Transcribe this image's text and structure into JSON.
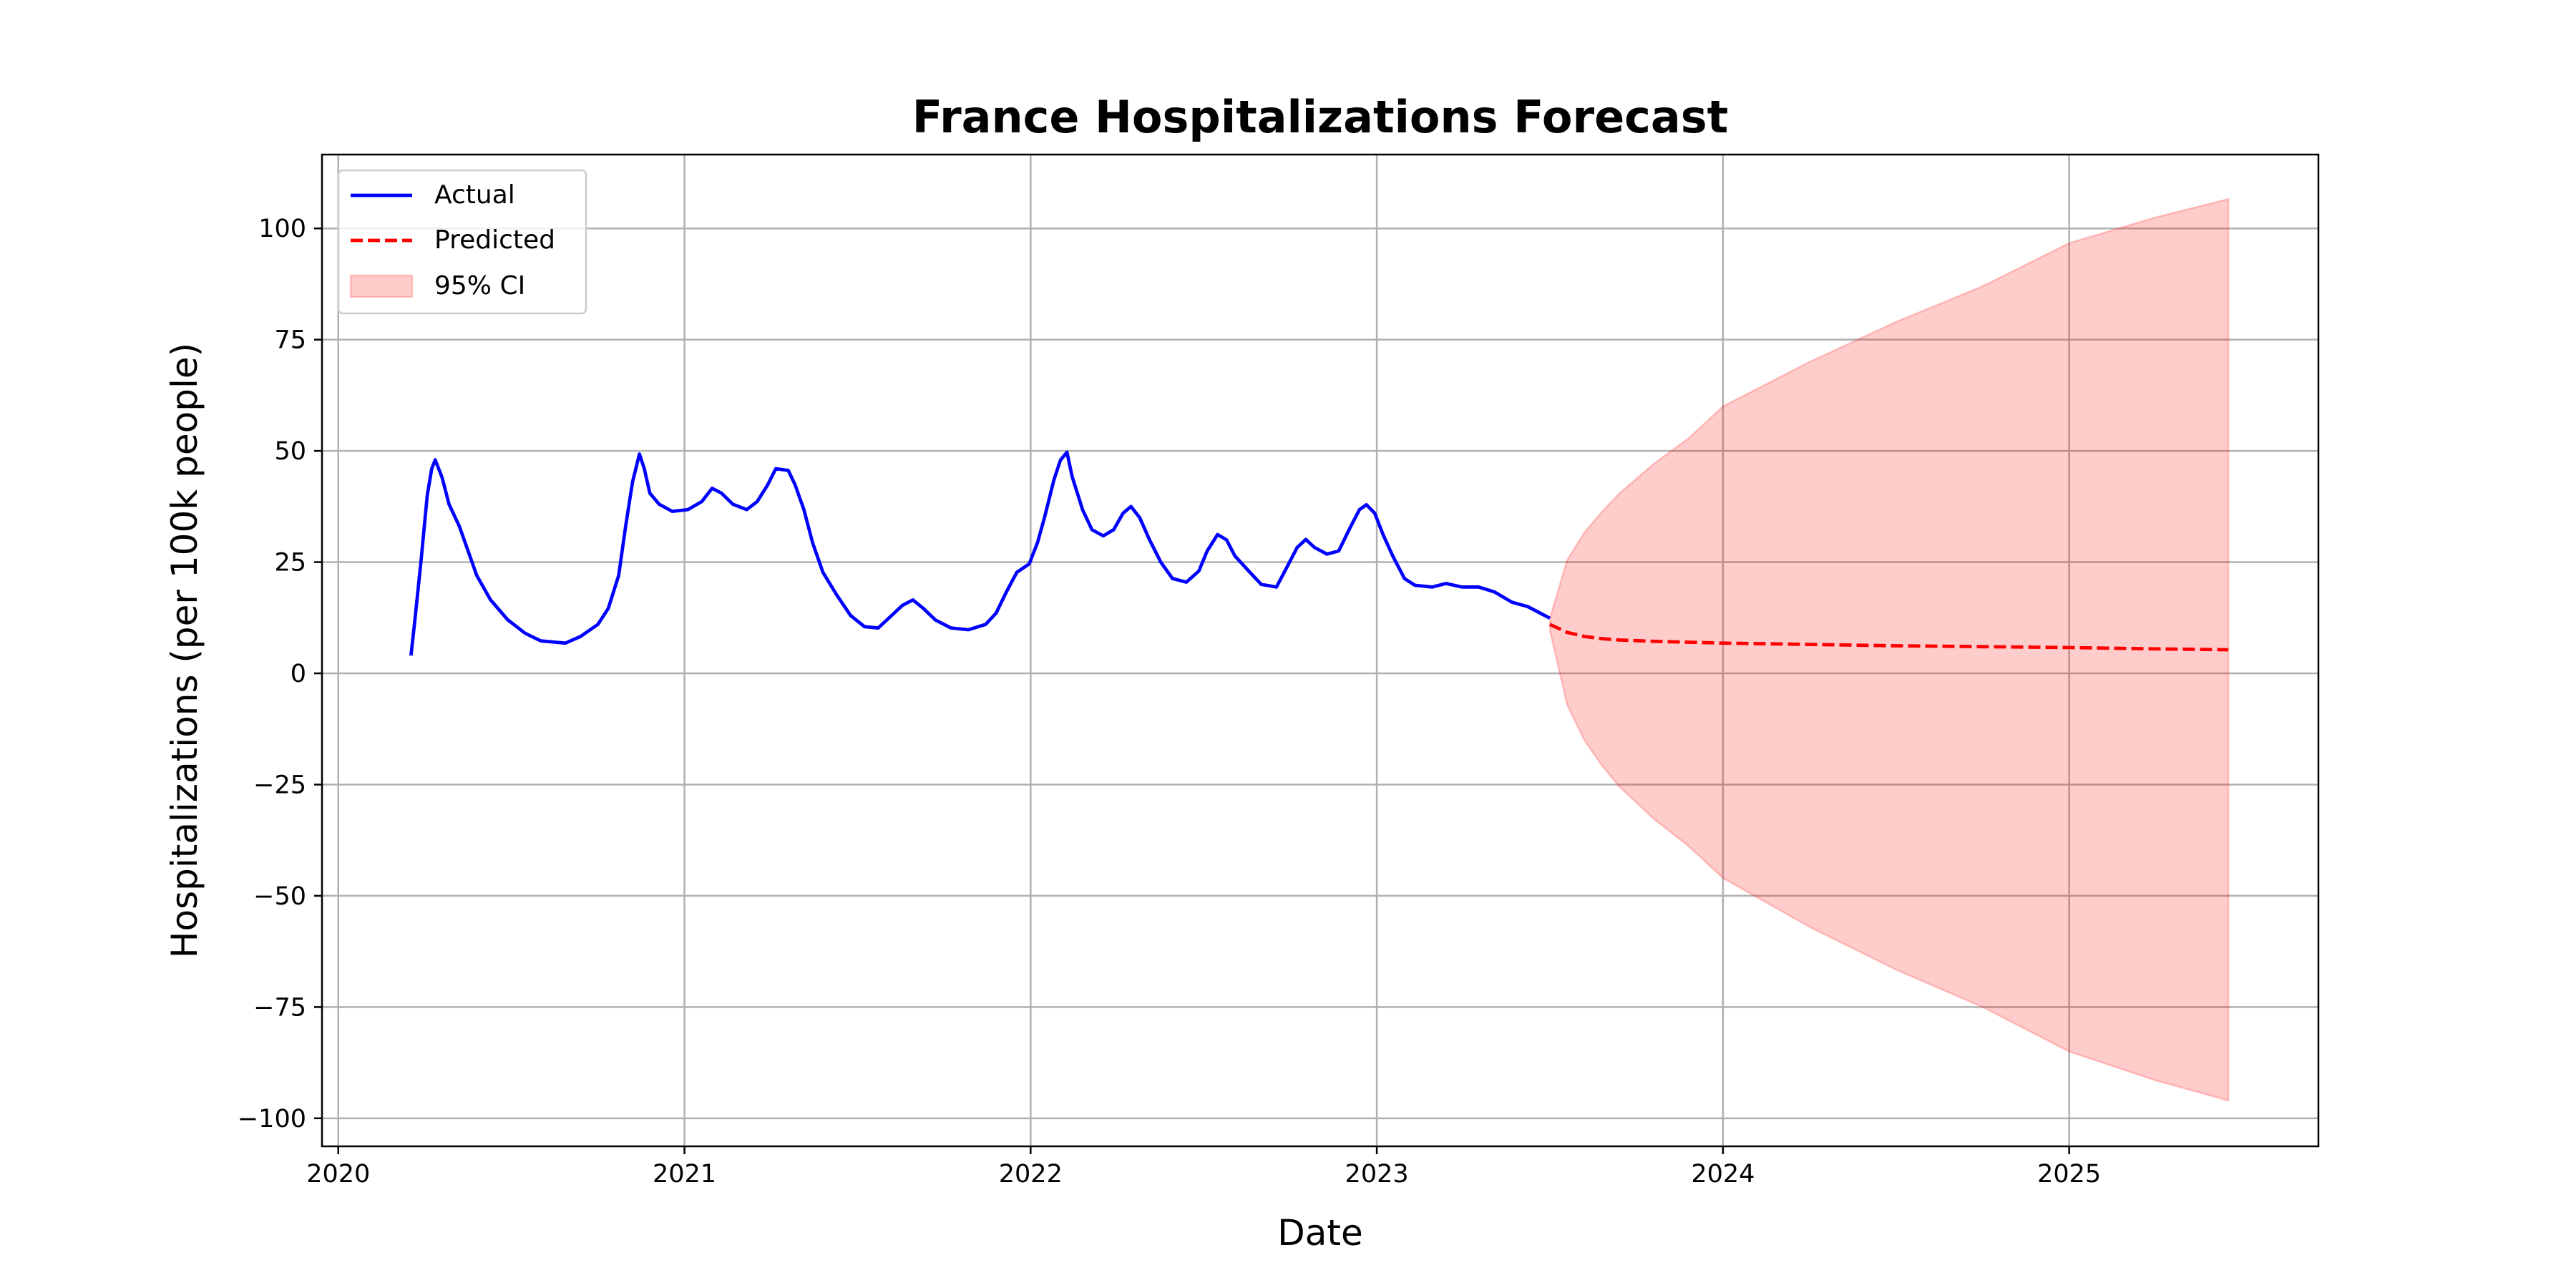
{
  "chart_data": {
    "type": "line",
    "title": "France Hospitalizations Forecast",
    "xlabel": "Date",
    "ylabel": "Hospitalizations (per 100k people)",
    "xlim": [
      2019.953,
      2025.72
    ],
    "ylim": [
      -106.3,
      116.6
    ],
    "xticks": [
      2020,
      2021,
      2022,
      2023,
      2024,
      2025
    ],
    "xtick_labels": [
      "2020",
      "2021",
      "2022",
      "2023",
      "2024",
      "2025"
    ],
    "yticks": [
      -100,
      -75,
      -50,
      -25,
      0,
      25,
      50,
      75,
      100
    ],
    "ytick_labels": [
      "−100",
      "−75",
      "−50",
      "−25",
      "0",
      "25",
      "50",
      "75",
      "100"
    ],
    "grid": true,
    "legend_position": "upper-left",
    "colors": {
      "actual": "#0000ff",
      "predicted": "#ff0000",
      "ci": "#ff9999"
    },
    "series": [
      {
        "name": "Actual",
        "style": "solid",
        "x": [
          2020.21,
          2020.22,
          2020.24,
          2020.257,
          2020.27,
          2020.28,
          2020.3,
          2020.32,
          2020.35,
          2020.375,
          2020.4,
          2020.44,
          2020.49,
          2020.54,
          2020.585,
          2020.656,
          2020.7,
          2020.75,
          2020.78,
          2020.81,
          2020.83,
          2020.85,
          2020.87,
          2020.884,
          2020.9,
          2020.927,
          2020.965,
          2021.01,
          2021.05,
          2021.08,
          2021.107,
          2021.14,
          2021.18,
          2021.21,
          2021.24,
          2021.264,
          2021.3,
          2021.32,
          2021.345,
          2021.37,
          2021.4,
          2021.44,
          2021.48,
          2021.52,
          2021.56,
          2021.59,
          2021.63,
          2021.66,
          2021.69,
          2021.725,
          2021.77,
          2021.82,
          2021.87,
          2021.9,
          2021.93,
          2021.96,
          2021.996,
          2022.02,
          2022.04,
          2022.067,
          2022.086,
          2022.105,
          2022.12,
          2022.15,
          2022.177,
          2022.21,
          2022.24,
          2022.267,
          2022.29,
          2022.315,
          2022.343,
          2022.376,
          2022.41,
          2022.45,
          2022.486,
          2022.51,
          2022.54,
          2022.566,
          2022.59,
          2022.63,
          2022.666,
          2022.71,
          2022.74,
          2022.77,
          2022.795,
          2022.82,
          2022.856,
          2022.89,
          2022.92,
          2022.95,
          2022.97,
          2022.994,
          2023.018,
          2023.046,
          2023.08,
          2023.11,
          2023.16,
          2023.2,
          2023.246,
          2023.294,
          2023.34,
          2023.39,
          2023.436,
          2023.5
        ],
        "y": [
          4,
          11,
          26,
          40,
          46,
          48,
          44,
          38,
          33,
          27.5,
          22,
          16.5,
          12,
          9,
          7.3,
          6.8,
          8.3,
          11,
          14.6,
          22,
          33,
          43,
          49.3,
          46,
          40.5,
          38,
          36.4,
          36.8,
          38.6,
          41.6,
          40.5,
          38,
          36.8,
          38.6,
          42.3,
          46,
          45.6,
          42.3,
          36.8,
          29.4,
          22.7,
          17.6,
          13,
          10.5,
          10.2,
          12.4,
          15.3,
          16.5,
          14.6,
          12,
          10.2,
          9.8,
          11,
          13.5,
          18.3,
          22.7,
          24.6,
          29.4,
          35,
          43.4,
          47.9,
          49.7,
          44.2,
          36.8,
          32.3,
          30.9,
          32.3,
          36,
          37.5,
          35,
          30.1,
          25,
          21.3,
          20.5,
          23,
          27.5,
          31.2,
          30,
          26.4,
          23,
          20,
          19.4,
          23.8,
          28.3,
          30.1,
          28.3,
          26.8,
          27.5,
          32.3,
          36.8,
          37.9,
          36,
          31.2,
          26.4,
          21.3,
          19.8,
          19.4,
          20.2,
          19.4,
          19.4,
          18.3,
          16,
          15,
          12.4
        ]
      },
      {
        "name": "Predicted",
        "style": "dashed",
        "x": [
          2023.5,
          2023.55,
          2023.6,
          2023.65,
          2023.7,
          2023.8,
          2023.9,
          2024.0,
          2024.25,
          2024.5,
          2024.75,
          2025.0,
          2025.25,
          2025.46
        ],
        "y": [
          11,
          9.2,
          8.3,
          7.8,
          7.5,
          7.2,
          7.0,
          6.8,
          6.5,
          6.2,
          6.0,
          5.8,
          5.5,
          5.3
        ]
      }
    ],
    "confidence_band": {
      "name": "95% CI",
      "x": [
        2023.5,
        2023.55,
        2023.6,
        2023.65,
        2023.7,
        2023.8,
        2023.9,
        2024.0,
        2024.25,
        2024.5,
        2024.75,
        2025.0,
        2025.25,
        2025.46
      ],
      "upper": [
        12.4,
        25.5,
        31.7,
        36.3,
        40.4,
        47.1,
        52.8,
        60.0,
        70.0,
        79.0,
        87.0,
        96.7,
        102.5,
        106.6
      ],
      "lower": [
        9.6,
        -7.1,
        -15.1,
        -20.7,
        -25.4,
        -32.7,
        -38.8,
        -46.0,
        -57.0,
        -66.6,
        -75.0,
        -85.0,
        -91.5,
        -96.0
      ]
    },
    "legend": [
      "Actual",
      "Predicted",
      "95% CI"
    ]
  }
}
